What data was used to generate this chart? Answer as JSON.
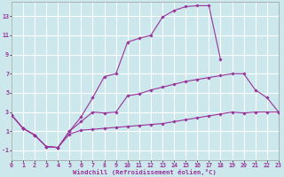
{
  "xlabel": "Windchill (Refroidissement éolien,°C)",
  "background_color": "#cce8ed",
  "grid_color": "#ffffff",
  "line_color": "#993399",
  "xlim": [
    0,
    23
  ],
  "ylim": [
    -2,
    14.5
  ],
  "xticks": [
    0,
    1,
    2,
    3,
    4,
    5,
    6,
    7,
    8,
    9,
    10,
    11,
    12,
    13,
    14,
    15,
    16,
    17,
    18,
    19,
    20,
    21,
    22,
    23
  ],
  "yticks": [
    -1,
    1,
    3,
    5,
    7,
    9,
    11,
    13
  ],
  "line1_x": [
    0,
    1,
    2,
    3,
    4,
    5,
    6,
    7,
    8,
    9,
    10,
    11,
    12,
    13,
    14,
    15,
    16,
    17,
    18,
    19,
    20,
    21,
    22,
    23
  ],
  "line1_y": [
    2.7,
    1.3,
    0.6,
    -0.6,
    -0.7,
    0.7,
    1.1,
    1.2,
    1.3,
    1.4,
    1.5,
    1.6,
    1.7,
    1.8,
    2.0,
    2.2,
    2.4,
    2.6,
    2.8,
    3.0,
    2.9,
    3.0,
    3.0,
    3.0
  ],
  "line2_x": [
    0,
    1,
    2,
    3,
    4,
    5,
    6,
    7,
    8,
    9,
    10,
    11,
    12,
    13,
    14,
    15,
    16,
    17,
    18,
    19,
    20,
    21,
    22,
    23
  ],
  "line2_y": [
    2.7,
    1.3,
    0.6,
    -0.6,
    -0.7,
    1.0,
    2.0,
    3.0,
    2.9,
    3.0,
    4.7,
    4.9,
    5.3,
    5.6,
    5.9,
    6.2,
    6.4,
    6.6,
    6.8,
    7.0,
    7.0,
    5.3,
    4.5,
    3.0
  ],
  "line3_x": [
    0,
    1,
    2,
    3,
    4,
    5,
    6,
    7,
    8,
    9,
    10,
    11,
    12,
    13,
    14,
    15,
    16,
    17,
    18
  ],
  "line3_y": [
    2.7,
    1.3,
    0.6,
    -0.6,
    -0.7,
    1.0,
    2.5,
    4.5,
    6.7,
    7.0,
    10.3,
    10.7,
    11.0,
    12.9,
    13.6,
    14.0,
    14.1,
    14.1,
    8.5
  ],
  "markersize": 1.8,
  "linewidth": 0.8
}
